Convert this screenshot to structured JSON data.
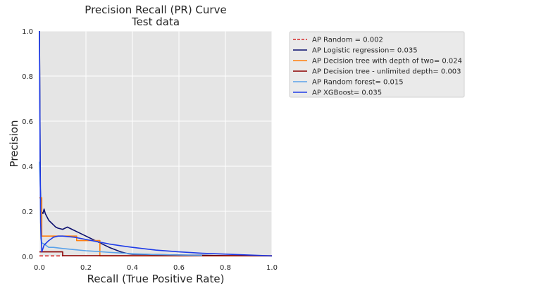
{
  "chart_data": {
    "type": "line",
    "title": "Precision Recall (PR) Curve",
    "subtitle": "Test data",
    "xlabel": "Recall (True Positive Rate)",
    "ylabel": "Precision",
    "xlim": [
      0,
      1
    ],
    "ylim": [
      0,
      1
    ],
    "xticks": [
      "0.0",
      "0.2",
      "0.4",
      "0.6",
      "0.8",
      "1.0"
    ],
    "yticks": [
      "0.0",
      "0.2",
      "0.4",
      "0.6",
      "0.8",
      "1.0"
    ],
    "grid": true,
    "legend_position": "outside-upper-right",
    "series": [
      {
        "name": "AP Random = 0.002",
        "color": "#d62728",
        "style": "dashed",
        "x": [
          0,
          0.1
        ],
        "y": [
          0.002,
          0.002
        ]
      },
      {
        "name": "AP Logistic regression= 0.035",
        "color": "#0b0f6e",
        "style": "solid",
        "x": [
          0,
          0.004,
          0.008,
          0.015,
          0.02,
          0.025,
          0.03,
          0.04,
          0.05,
          0.06,
          0.07,
          0.08,
          0.1,
          0.12,
          0.14,
          0.16,
          0.2,
          0.25,
          0.3,
          0.35,
          0.38,
          0.4,
          0.5,
          0.6,
          0.7,
          0.8,
          1.0
        ],
        "y": [
          1.0,
          0.3,
          0.2,
          0.19,
          0.21,
          0.19,
          0.18,
          0.16,
          0.15,
          0.14,
          0.13,
          0.125,
          0.12,
          0.13,
          0.12,
          0.11,
          0.09,
          0.065,
          0.04,
          0.02,
          0.012,
          0.01,
          0.008,
          0.006,
          0.005,
          0.003,
          0.002
        ]
      },
      {
        "name": "AP Decision tree with depth of two= 0.024",
        "color": "#ff7f0e",
        "style": "step",
        "x": [
          0,
          0.01,
          0.01,
          0.02,
          0.02,
          0.16,
          0.16,
          0.26,
          0.26,
          1.0
        ],
        "y": [
          0.26,
          0.26,
          0.09,
          0.09,
          0.09,
          0.09,
          0.07,
          0.07,
          0.002,
          0.002
        ]
      },
      {
        "name": "AP Decision tree - unlimited depth= 0.003",
        "color": "#8b0000",
        "style": "step",
        "x": [
          0,
          0.1,
          0.1,
          1.0
        ],
        "y": [
          0.02,
          0.02,
          0.003,
          0.003
        ]
      },
      {
        "name": "AP Random forest= 0.015",
        "color": "#5aa2ea",
        "style": "solid",
        "x": [
          0,
          0.004,
          0.006,
          0.01,
          0.02,
          0.04,
          0.06,
          0.1,
          0.15,
          0.2,
          0.3,
          0.4,
          0.5,
          0.6,
          0.7
        ],
        "y": [
          0.42,
          0.3,
          0.08,
          0.06,
          0.055,
          0.04,
          0.04,
          0.035,
          0.03,
          0.025,
          0.018,
          0.012,
          0.008,
          0.006,
          0.004
        ]
      },
      {
        "name": "AP XGBoost= 0.035",
        "color": "#1f3ce8",
        "style": "solid",
        "x": [
          0,
          0.003,
          0.005,
          0.01,
          0.02,
          0.04,
          0.06,
          0.08,
          0.1,
          0.15,
          0.2,
          0.25,
          0.3,
          0.35,
          0.4,
          0.5,
          0.6,
          0.7,
          0.8,
          0.9,
          1.0
        ],
        "y": [
          1.0,
          0.4,
          0.15,
          0.02,
          0.05,
          0.07,
          0.085,
          0.09,
          0.09,
          0.085,
          0.075,
          0.065,
          0.055,
          0.047,
          0.04,
          0.028,
          0.02,
          0.014,
          0.01,
          0.006,
          0.002
        ]
      }
    ]
  }
}
